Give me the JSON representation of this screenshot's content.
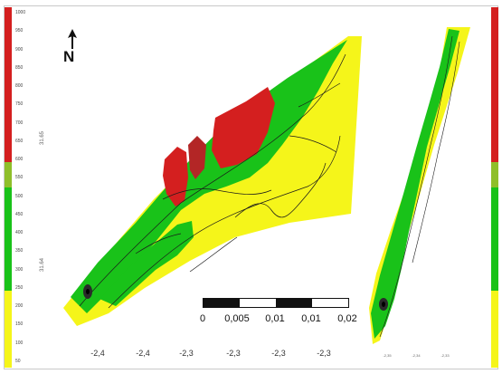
{
  "north_label": "N",
  "legend_colors": [
    "#d41f1f",
    "#d41f1f",
    "#d41f1f",
    "#d41f1f",
    "#d41f1f",
    "#d41f1f",
    "#8fbf2a",
    "#19c219",
    "#19c219",
    "#19c219",
    "#19c219",
    "#f5f51a",
    "#f5f51a",
    "#f5f51a"
  ],
  "legend_ticks": [
    "1000",
    "950",
    "900",
    "850",
    "800",
    "750",
    "700",
    "650",
    "600",
    "550",
    "500",
    "450",
    "400",
    "350",
    "300",
    "250",
    "200",
    "150",
    "100",
    "50"
  ],
  "lat_labels": [
    "31.65",
    "31.64"
  ],
  "scale_bar": {
    "labels": [
      "0",
      "0,005",
      "0,01",
      "0,01",
      "0,02"
    ]
  },
  "x_ticks": [
    "-2,4",
    "-2,4",
    "-2,3",
    "-2,3",
    "-2,3",
    "-2,3"
  ],
  "x_ticks_right": [
    "-2,35",
    "-2,34",
    "-2,33"
  ],
  "colors": {
    "high": "#d41f1f",
    "mid": "#19c219",
    "low": "#f5f51a",
    "contour": "#1a1a1a"
  }
}
